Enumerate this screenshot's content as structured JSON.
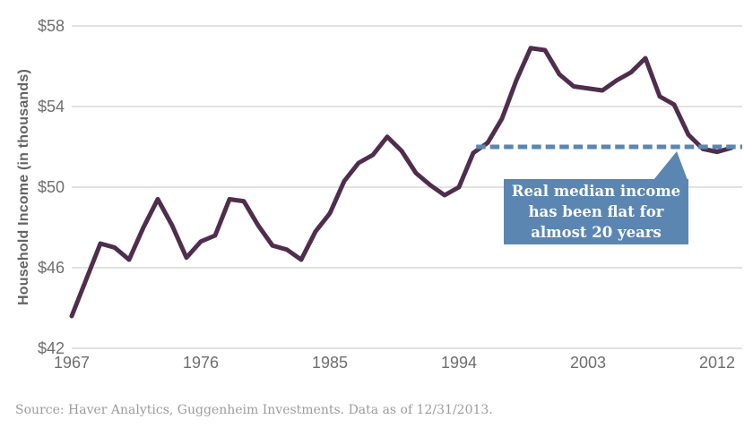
{
  "chart_data": {
    "type": "line",
    "title": "",
    "xlabel": "",
    "ylabel": "Household Income (in thousands)",
    "xlim": [
      1967,
      2013.75
    ],
    "ylim": [
      42,
      58
    ],
    "grid": "horizontal",
    "x_ticks": [
      1967,
      1976,
      1985,
      1994,
      2003,
      2012
    ],
    "y_ticks": [
      42,
      46,
      50,
      54,
      58
    ],
    "y_tick_labels": [
      "$42",
      "$46",
      "$50",
      "$54",
      "$58"
    ],
    "series": [
      {
        "name": "Real median household income",
        "color": "#4f2d4d",
        "x": [
          1967,
          1968,
          1969,
          1970,
          1971,
          1972,
          1973,
          1974,
          1975,
          1976,
          1977,
          1978,
          1979,
          1980,
          1981,
          1982,
          1983,
          1984,
          1985,
          1986,
          1987,
          1988,
          1989,
          1990,
          1991,
          1992,
          1993,
          1994,
          1995,
          1996,
          1997,
          1998,
          1999,
          2000,
          2001,
          2002,
          2003,
          2004,
          2005,
          2006,
          2007,
          2008,
          2009,
          2010,
          2011,
          2012,
          2013
        ],
        "values": [
          43.6,
          45.4,
          47.2,
          47.0,
          46.4,
          48.0,
          49.4,
          48.1,
          46.5,
          47.3,
          47.6,
          49.4,
          49.3,
          48.1,
          47.1,
          46.9,
          46.4,
          47.8,
          48.7,
          50.3,
          51.2,
          51.6,
          52.5,
          51.8,
          50.7,
          50.1,
          49.6,
          50.0,
          51.7,
          52.2,
          53.4,
          55.3,
          56.9,
          56.8,
          55.6,
          55.0,
          54.9,
          54.8,
          55.3,
          55.7,
          56.4,
          54.5,
          54.1,
          52.6,
          51.9,
          51.75,
          51.95
        ]
      }
    ],
    "reference_line": {
      "value": 52.0,
      "x_start": 1995.2,
      "x_end": 2013.75,
      "style": "dashed",
      "color": "#5b86b2"
    },
    "annotation": {
      "text": "Real median income has been flat for almost 20 years",
      "lines": [
        "Real median income",
        "has been flat for",
        "almost 20 years"
      ],
      "box_color": "#5b86b2",
      "text_color": "#ffffff"
    },
    "colors": {
      "gridline": "#d8d8d8",
      "tick_text": "#6e6e6e",
      "axis_title_text": "#636363",
      "source_text": "#9c9c9c"
    }
  },
  "source_note": "Source: Haver Analytics, Guggenheim Investments. Data as of 12/31/2013."
}
